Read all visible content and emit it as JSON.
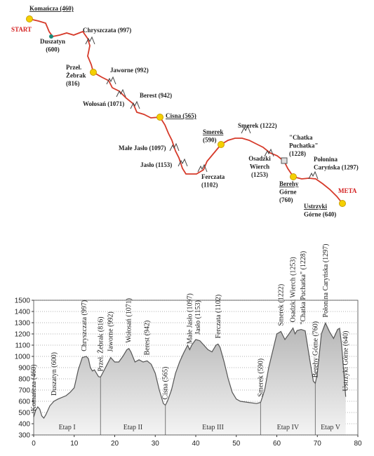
{
  "map": {
    "start": "START",
    "meta": "META",
    "places": [
      {
        "lines": [
          "Komańcza (460)"
        ],
        "underline": true
      },
      {
        "lines": [
          "Duszatyn",
          "(600)"
        ]
      },
      {
        "lines": [
          "Chryszczata (997)"
        ]
      },
      {
        "lines": [
          "Przeł.",
          "Żebrak",
          "(816)"
        ]
      },
      {
        "lines": [
          "Jaworne (992)"
        ]
      },
      {
        "lines": [
          "Berest (942)"
        ]
      },
      {
        "lines": [
          "Wołosań (1071)"
        ]
      },
      {
        "lines": [
          "Cisna (565)"
        ],
        "underline": true
      },
      {
        "lines": [
          "Małe Jasło (1097)"
        ]
      },
      {
        "lines": [
          "Jasło (1153)"
        ]
      },
      {
        "lines": [
          "Ferczata",
          "(1102)"
        ]
      },
      {
        "lines": [
          "Smerek",
          "(590)"
        ],
        "underline": true
      },
      {
        "lines": [
          "Smerek (1222)"
        ]
      },
      {
        "lines": [
          "Osadzki",
          "Wierch",
          "(1253)"
        ]
      },
      {
        "lines": [
          "\"Chatka",
          "Puchatka\"",
          "(1228)"
        ]
      },
      {
        "lines": [
          "Połonina",
          "Caryńska (1297)"
        ]
      },
      {
        "lines": [
          "Berehy",
          "Górne",
          "(760)"
        ],
        "underline": true
      },
      {
        "lines": [
          "Ustrzyki",
          "Górne (640)"
        ],
        "underline": true
      }
    ]
  },
  "chart_data": {
    "type": "area",
    "color": "#b5b5b5",
    "line_color": "#555555",
    "grid": true,
    "x": [
      0,
      0.5,
      1,
      1.5,
      2,
      2.5,
      3,
      4,
      5,
      6,
      8,
      9,
      10,
      11,
      12,
      13,
      13.5,
      14,
      14.5,
      15,
      15.5,
      16,
      16.5,
      17,
      18,
      19,
      20,
      21,
      22,
      23,
      23.5,
      24,
      25,
      26,
      27,
      28,
      29,
      30,
      31,
      32,
      32.5,
      33,
      34,
      35,
      36,
      37,
      38,
      38.5,
      39,
      40,
      41,
      42,
      43,
      44,
      45,
      45.5,
      46,
      47,
      48,
      49,
      50,
      51,
      53,
      55,
      56,
      57,
      58,
      59,
      60,
      61,
      62,
      63,
      64,
      64.5,
      65,
      66,
      67,
      68,
      69,
      69.5,
      70,
      71,
      72,
      73,
      74,
      75,
      75.5,
      76,
      77
    ],
    "values": [
      460,
      520,
      550,
      530,
      470,
      450,
      480,
      560,
      600,
      620,
      650,
      680,
      720,
      880,
      990,
      1000,
      980,
      900,
      870,
      880,
      850,
      820,
      816,
      850,
      920,
      990,
      950,
      950,
      1000,
      1060,
      1070,
      1040,
      950,
      970,
      950,
      960,
      930,
      850,
      700,
      580,
      565,
      600,
      700,
      850,
      950,
      1030,
      1100,
      1060,
      1100,
      1150,
      1140,
      1100,
      1060,
      1040,
      1100,
      1110,
      1080,
      950,
      800,
      680,
      620,
      600,
      590,
      580,
      590,
      700,
      900,
      1050,
      1200,
      1222,
      1150,
      1200,
      1253,
      1200,
      1230,
      1240,
      1228,
      1000,
      780,
      760,
      850,
      1200,
      1297,
      1220,
      1160,
      1240,
      1250,
      1100,
      640
    ],
    "xlim": [
      0,
      80
    ],
    "ylim": [
      300,
      1500
    ],
    "xticks": [
      0,
      10,
      20,
      30,
      40,
      50,
      60,
      70,
      80
    ],
    "yticks": [
      300,
      400,
      500,
      600,
      700,
      800,
      900,
      1000,
      1100,
      1200,
      1300,
      1400,
      1500
    ],
    "annotations": [
      {
        "x": 0,
        "label": "Komańcza (460)"
      },
      {
        "x": 5,
        "label": "Duszatyn (600)"
      },
      {
        "x": 12.5,
        "label": "Chryszczata (997)"
      },
      {
        "x": 16.5,
        "label": "Przeł. Żebrak (816)"
      },
      {
        "x": 19,
        "label": "Jaworne (992)"
      },
      {
        "x": 23.5,
        "label": "Wołosań (1071)"
      },
      {
        "x": 28,
        "label": "Berest (942)"
      },
      {
        "x": 32.5,
        "label": "Cisna (565)"
      },
      {
        "x": 38.5,
        "label": "Małe Jasło (1097)"
      },
      {
        "x": 40.5,
        "label": "Jasło (1153)"
      },
      {
        "x": 45.5,
        "label": "Ferczata (1102)"
      },
      {
        "x": 56,
        "label": "Smerek (590)"
      },
      {
        "x": 61,
        "label": "Smerek (1222)"
      },
      {
        "x": 64,
        "label": "Osadzki Wierch (1253)"
      },
      {
        "x": 66.5,
        "label": "\"Chatka Puchatka\" (1228)"
      },
      {
        "x": 69.5,
        "label": "Berehy Górne (760)"
      },
      {
        "x": 72,
        "label": "Połonina Caryńska (1297)"
      },
      {
        "x": 77,
        "label": "Ustrzyki Górne (640)"
      }
    ],
    "stages": [
      {
        "label": "Etap I",
        "start": 0,
        "end": 16.5
      },
      {
        "label": "Etap II",
        "start": 16.5,
        "end": 32.5
      },
      {
        "label": "Etap III",
        "start": 32.5,
        "end": 56
      },
      {
        "label": "Etap IV",
        "start": 56,
        "end": 69.5
      },
      {
        "label": "Etap V",
        "start": 69.5,
        "end": 77
      }
    ]
  }
}
